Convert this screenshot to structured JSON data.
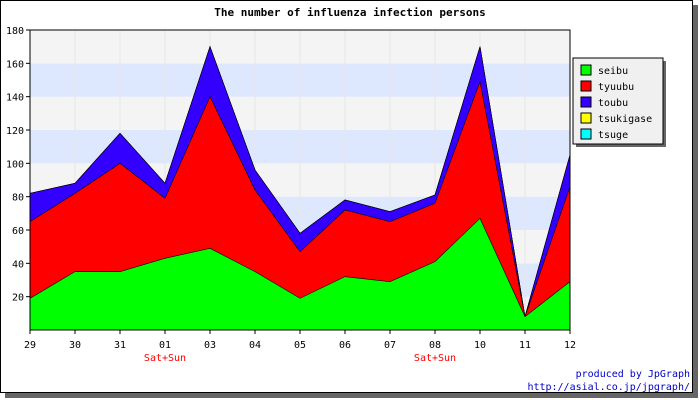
{
  "chart_data": {
    "type": "area",
    "stacked": true,
    "title": "The number of influenza infection persons",
    "categories": [
      "29",
      "30",
      "31",
      "01",
      "03",
      "04",
      "05",
      "06",
      "07",
      "08",
      "10",
      "11",
      "12"
    ],
    "weekend_labels": [
      {
        "category": "01",
        "text": "Sat+Sun"
      },
      {
        "category": "08",
        "text": "Sat+Sun"
      }
    ],
    "ylim": [
      0,
      180
    ],
    "yticks": [
      20,
      40,
      60,
      80,
      100,
      120,
      140,
      160,
      180
    ],
    "grid": true,
    "legend_position": "right",
    "series": [
      {
        "name": "seibu",
        "color": "#00ff00",
        "values": [
          19,
          35,
          35,
          43,
          49,
          35,
          19,
          32,
          29,
          41,
          67,
          8,
          29
        ]
      },
      {
        "name": "tyuubu",
        "color": "#ff0000",
        "values": [
          46,
          47,
          65,
          36,
          91,
          49,
          28,
          40,
          36,
          35,
          82,
          0,
          57
        ]
      },
      {
        "name": "toubu",
        "color": "#3300ff",
        "values": [
          17,
          6,
          18,
          9,
          30,
          12,
          11,
          6,
          6,
          5,
          21,
          0,
          19
        ]
      },
      {
        "name": "tsukigase",
        "color": "#ffff00",
        "values": [
          0,
          0,
          0,
          0,
          0,
          0,
          0,
          0,
          0,
          0,
          0,
          0,
          0
        ]
      },
      {
        "name": "tsuge",
        "color": "#00ffff",
        "values": [
          0,
          0,
          0,
          0,
          0,
          0,
          0,
          0,
          0,
          0,
          0,
          0,
          0
        ]
      }
    ]
  },
  "credits": {
    "line1": "produced by JpGraph",
    "line2": "http://asial.co.jp/jpgraph/"
  }
}
